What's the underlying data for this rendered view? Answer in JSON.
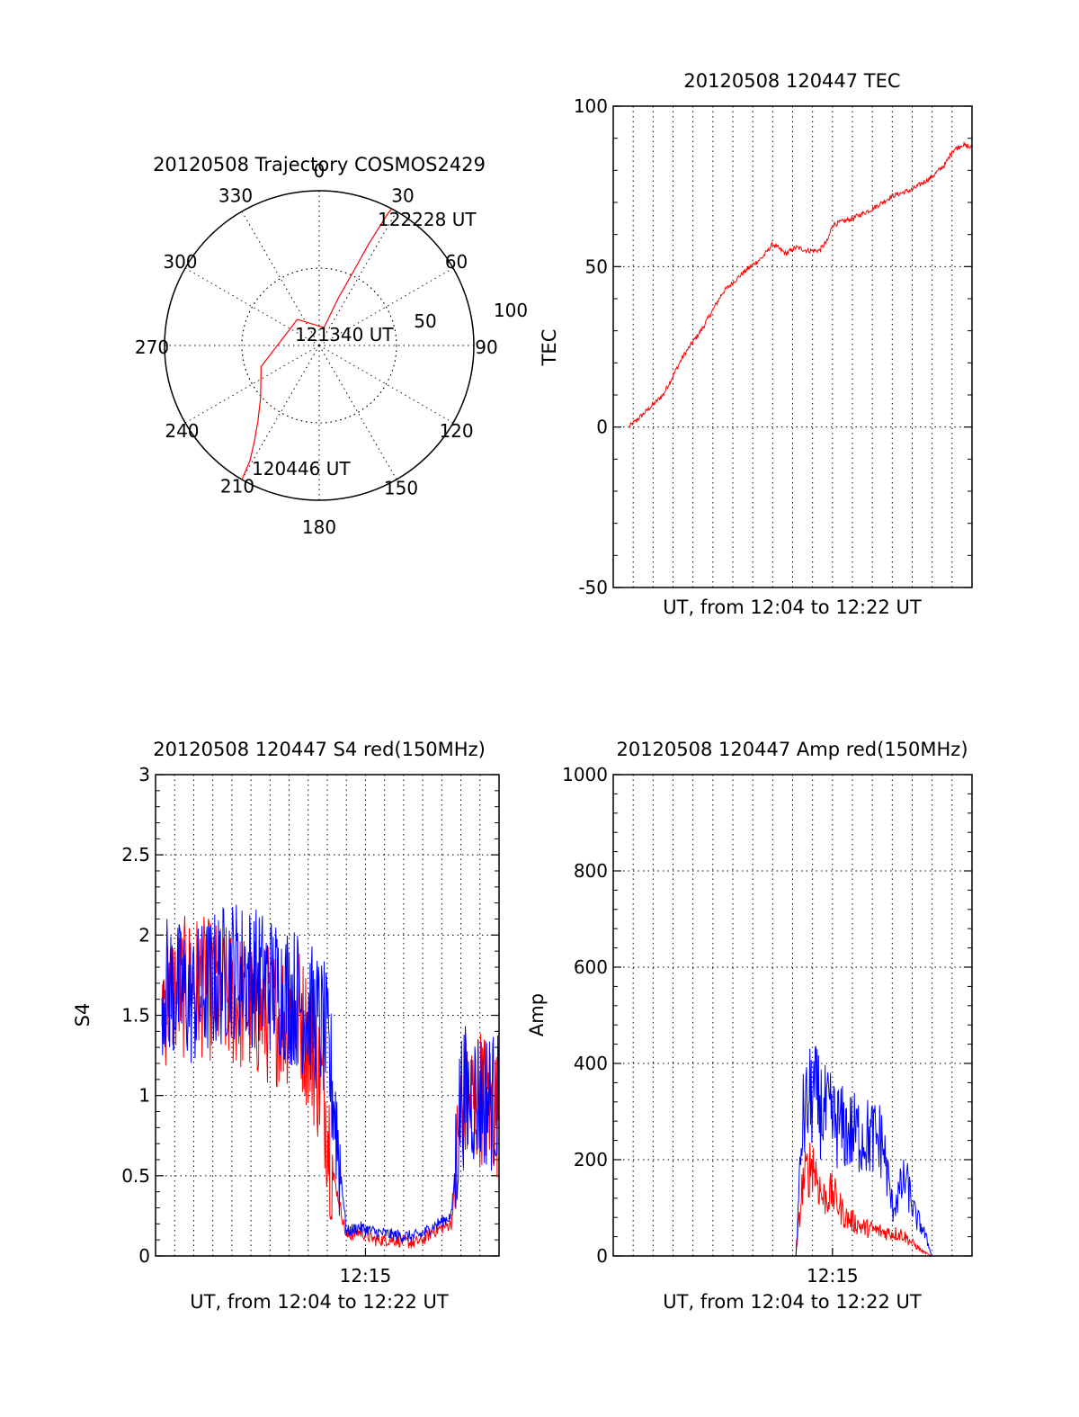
{
  "colors": {
    "red": "#ff0000",
    "blue": "#0000ff",
    "axes": "#000000"
  },
  "chart_data": [
    {
      "type": "polar",
      "title": "20120508 Trajectory COSMOS2429",
      "angle_labels": [
        "0",
        "30",
        "60",
        "90",
        "120",
        "150",
        "180",
        "210",
        "240",
        "270",
        "300",
        "330"
      ],
      "radius_labels": [
        "50",
        "100"
      ],
      "rlim": [
        0,
        100
      ],
      "grid": true,
      "series": [
        {
          "color": "#ff0000",
          "azimuth_deg": [
            210,
            211,
            214,
            219,
            228,
            250,
            320,
            15,
            22,
            25,
            26,
            27,
            27.5,
            28
          ],
          "radius": [
            100,
            87,
            75,
            63,
            51,
            40,
            22,
            12,
            33,
            55,
            73,
            87,
            96,
            100
          ]
        }
      ],
      "annotations": [
        "122228 UT",
        "121340 UT",
        "120446 UT"
      ]
    },
    {
      "type": "line",
      "title": "20120508 120447 TEC",
      "xlabel": "UT, from 12:04 to 12:22 UT",
      "ylabel": "TEC",
      "xlim": [
        "12:04",
        "12:22"
      ],
      "ylim": [
        -50,
        100
      ],
      "yticks": [
        "-50",
        "0",
        "50",
        "100"
      ],
      "xticks": [],
      "grid": true,
      "series": [
        {
          "color": "#ff0000",
          "x": [
            "12:04:47",
            "12:05:30",
            "12:06:30",
            "12:07:30",
            "12:08:30",
            "12:09:30",
            "12:10:30",
            "12:11:30",
            "12:12:00",
            "12:12:40",
            "12:13:10",
            "12:13:45",
            "12:14:20",
            "12:14:45",
            "12:15:00",
            "12:16:00",
            "12:17:00",
            "12:18:00",
            "12:19:00",
            "12:20:00",
            "12:20:40",
            "12:21:00",
            "12:21:30",
            "12:22:00"
          ],
          "y": [
            0,
            4,
            10,
            22,
            31,
            42,
            48,
            53,
            57,
            54,
            56,
            55,
            55,
            58,
            63,
            65,
            68,
            72,
            74,
            78,
            82,
            86,
            88,
            87
          ]
        }
      ]
    },
    {
      "type": "line",
      "title": "20120508 120447 S4 red(150MHz)",
      "xlabel": "UT, from 12:04 to 12:22 UT",
      "ylabel": "S4",
      "xlim": [
        "12:04",
        "12:22"
      ],
      "ylim": [
        0,
        3
      ],
      "yticks": [
        "0",
        "0.5",
        "1",
        "1.5",
        "2",
        "2.5",
        "3"
      ],
      "xticks": [
        "12:15"
      ],
      "grid": true,
      "series": [
        {
          "color": "#ff0000",
          "x": [
            "12:04:20",
            "12:06:00",
            "12:08:00",
            "12:10:00",
            "12:11:30",
            "12:12:10",
            "12:12:50",
            "12:13:20",
            "12:14:00",
            "12:14:40",
            "12:15:30",
            "12:16:30",
            "12:17:30",
            "12:18:00",
            "12:18:30",
            "12:19:30",
            "12:20:00",
            "12:21:00",
            "12:22:00"
          ],
          "y": [
            1.6,
            1.7,
            1.6,
            1.5,
            1.5,
            1.3,
            1.0,
            0.5,
            0.12,
            0.15,
            0.1,
            0.1,
            0.08,
            0.1,
            0.15,
            0.2,
            0.9,
            1.0,
            0.9
          ]
        },
        {
          "color": "#0000ff",
          "x": [
            "12:04:20",
            "12:06:00",
            "12:08:00",
            "12:10:00",
            "12:11:30",
            "12:12:10",
            "12:12:50",
            "12:13:20",
            "12:14:00",
            "12:14:40",
            "12:15:30",
            "12:16:30",
            "12:17:30",
            "12:18:00",
            "12:18:30",
            "12:19:30",
            "12:20:00",
            "12:21:00",
            "12:22:00"
          ],
          "y": [
            1.7,
            1.6,
            1.8,
            1.7,
            1.6,
            1.5,
            1.4,
            1.0,
            0.15,
            0.18,
            0.15,
            0.13,
            0.12,
            0.14,
            0.18,
            0.25,
            1.0,
            1.0,
            0.95
          ]
        }
      ]
    },
    {
      "type": "line",
      "title": "20120508 120447 Amp red(150MHz)",
      "xlabel": "UT, from 12:04 to 12:22 UT",
      "ylabel": "Amp",
      "xlim": [
        "12:04",
        "12:22"
      ],
      "ylim": [
        0,
        1000
      ],
      "yticks": [
        "0",
        "200",
        "400",
        "600",
        "800",
        "1000"
      ],
      "xticks": [
        "12:15"
      ],
      "grid": true,
      "series": [
        {
          "color": "#ff0000",
          "x": [
            "12:04:00",
            "12:13:10",
            "12:13:30",
            "12:14:00",
            "12:14:30",
            "12:15:00",
            "12:15:40",
            "12:16:30",
            "12:17:30",
            "12:18:30",
            "12:19:30",
            "12:20:00",
            "12:22:00"
          ],
          "y": [
            0,
            0,
            150,
            200,
            120,
            130,
            80,
            60,
            50,
            45,
            10,
            0,
            0
          ]
        },
        {
          "color": "#0000ff",
          "x": [
            "12:04:00",
            "12:13:10",
            "12:13:30",
            "12:14:00",
            "12:14:30",
            "12:15:00",
            "12:15:40",
            "12:16:30",
            "12:17:30",
            "12:18:00",
            "12:18:40",
            "12:19:10",
            "12:19:30",
            "12:20:00",
            "12:22:00"
          ],
          "y": [
            0,
            0,
            280,
            340,
            300,
            280,
            260,
            250,
            240,
            100,
            160,
            80,
            60,
            0,
            0
          ]
        }
      ]
    }
  ]
}
